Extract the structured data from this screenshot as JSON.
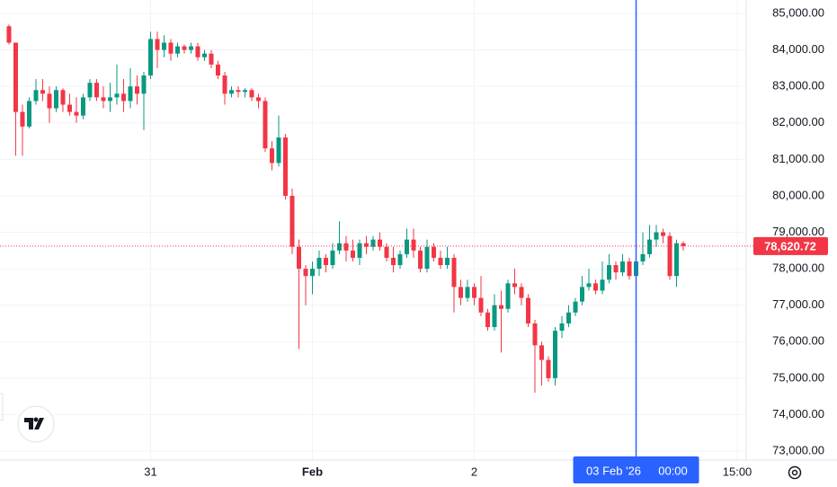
{
  "chart_data": {
    "type": "candlestick",
    "series": {
      "open": [
        84650,
        84200,
        82300,
        81900,
        82600,
        82900,
        82800,
        82400,
        82900,
        82500,
        82300,
        82200,
        82700,
        83100,
        82700,
        82600,
        82700,
        82800,
        82600,
        83000,
        82800,
        83300,
        84300,
        84000,
        84200,
        83900,
        84100,
        84000,
        84100,
        83800,
        83900,
        83600,
        83300,
        82800,
        82900,
        82850,
        82900,
        82700,
        82600,
        81300,
        80900,
        81600,
        80000,
        78600,
        78000,
        77800,
        78000,
        78300,
        78100,
        78500,
        78700,
        78500,
        78300,
        78700,
        78600,
        78800,
        78600,
        78300,
        78100,
        78400,
        78800,
        78500,
        78000,
        78600,
        78300,
        78100,
        78300,
        77500,
        77200,
        77500,
        77200,
        76800,
        76400,
        77000,
        76900,
        77600,
        77500,
        77200,
        76500,
        75900,
        75500,
        75000,
        76300,
        76500,
        76800,
        77100,
        77500,
        77600,
        77400,
        77700,
        78100,
        77900,
        78200,
        77800,
        78200,
        78400,
        78800,
        79000,
        78900,
        77800,
        78700
      ],
      "high": [
        84700,
        84200,
        82500,
        82700,
        83200,
        83200,
        83000,
        83000,
        82950,
        82800,
        82700,
        82800,
        83200,
        83200,
        83000,
        83100,
        83600,
        83200,
        83500,
        83300,
        83400,
        84500,
        84500,
        84400,
        84300,
        84200,
        84150,
        84200,
        84200,
        84000,
        84000,
        83700,
        83400,
        83000,
        83000,
        82950,
        82950,
        82800,
        82700,
        81500,
        82200,
        81700,
        80200,
        78800,
        78100,
        78200,
        78500,
        78400,
        78700,
        79300,
        78900,
        78800,
        78800,
        78900,
        78900,
        79000,
        78700,
        78600,
        78500,
        79100,
        79100,
        78600,
        78800,
        78700,
        78500,
        78600,
        78400,
        77700,
        77700,
        77600,
        77800,
        76900,
        77300,
        77400,
        77700,
        78000,
        77600,
        77300,
        76600,
        76000,
        75600,
        76400,
        76700,
        77000,
        77200,
        77800,
        78000,
        77700,
        78200,
        78400,
        78200,
        78400,
        78300,
        78500,
        79000,
        79200,
        79200,
        79100,
        79000,
        78800,
        78750
      ],
      "low": [
        84150,
        81100,
        81100,
        81850,
        82500,
        82600,
        82000,
        82300,
        82300,
        82200,
        82000,
        82100,
        82600,
        82600,
        82400,
        82300,
        82500,
        82300,
        82400,
        82500,
        81800,
        83200,
        83500,
        83800,
        83700,
        83800,
        83900,
        83900,
        83700,
        83700,
        83500,
        83200,
        82500,
        82700,
        82700,
        82700,
        82600,
        82400,
        81200,
        80700,
        80800,
        79900,
        78400,
        75800,
        77000,
        77300,
        77800,
        77900,
        78000,
        78400,
        78200,
        78200,
        78100,
        78400,
        78500,
        78500,
        78200,
        77900,
        78000,
        78300,
        78300,
        77900,
        77900,
        78200,
        78000,
        78000,
        76800,
        77000,
        77100,
        77000,
        76700,
        76300,
        76300,
        75700,
        76800,
        77300,
        77000,
        76400,
        74600,
        74800,
        74900,
        74800,
        76100,
        76400,
        76700,
        77000,
        77400,
        77300,
        77300,
        77600,
        77700,
        77800,
        77700,
        77700,
        78100,
        78300,
        78600,
        78700,
        77700,
        77500,
        78500
      ],
      "close": [
        84200,
        82300,
        81900,
        82600,
        82900,
        82800,
        82400,
        82900,
        82500,
        82300,
        82200,
        82700,
        83100,
        82700,
        82600,
        82700,
        82800,
        82600,
        83000,
        82800,
        83300,
        84300,
        84000,
        84200,
        83900,
        84100,
        84000,
        84100,
        83800,
        83900,
        83600,
        83300,
        82800,
        82900,
        82850,
        82900,
        82700,
        82600,
        81300,
        80900,
        81600,
        80000,
        78600,
        78000,
        77800,
        78000,
        78300,
        78100,
        78500,
        78700,
        78500,
        78300,
        78700,
        78600,
        78800,
        78600,
        78300,
        78100,
        78400,
        78800,
        78500,
        78000,
        78600,
        78300,
        78100,
        78300,
        77500,
        77200,
        77500,
        77200,
        76800,
        76400,
        77000,
        76900,
        77600,
        77500,
        77200,
        76500,
        75900,
        75500,
        75000,
        76300,
        76500,
        76800,
        77100,
        77500,
        77600,
        77400,
        77700,
        78100,
        77900,
        78200,
        77800,
        78200,
        78400,
        78800,
        79000,
        78900,
        77800,
        78700,
        78620.72
      ]
    },
    "colors": {
      "up": "#089981",
      "down": "#f23645"
    },
    "xlim": [
      -1.33,
      109.33
    ],
    "xticks": [
      {
        "value": 21,
        "label": "31"
      },
      {
        "value": 45,
        "label": "Feb"
      },
      {
        "value": 69,
        "label": "2"
      },
      {
        "value": 108,
        "label": "15:00"
      }
    ],
    "ylim": [
      72754,
      85370
    ],
    "yticks": [
      {
        "value": 73000,
        "label": "73,000.00"
      },
      {
        "value": 74000,
        "label": "74,000.00"
      },
      {
        "value": 75000,
        "label": "75,000.00"
      },
      {
        "value": 76000,
        "label": "76,000.00"
      },
      {
        "value": 77000,
        "label": "77,000.00"
      },
      {
        "value": 78000,
        "label": "78,000.00"
      },
      {
        "value": 79000,
        "label": "79,000.00"
      },
      {
        "value": 80000,
        "label": "80,000.00"
      },
      {
        "value": 81000,
        "label": "81,000.00"
      },
      {
        "value": 82000,
        "label": "82,000.00"
      },
      {
        "value": 83000,
        "label": "83,000.00"
      },
      {
        "value": 84000,
        "label": "84,000.00"
      },
      {
        "value": 85000,
        "label": "85,000.00"
      }
    ],
    "grid": true,
    "price_line": {
      "value": 78620.72,
      "label": "78,620.72",
      "color": "#f23645"
    },
    "crosshair": {
      "value": 93,
      "date": "03 Feb '26",
      "time": "00:00",
      "color": "#2962ff"
    }
  }
}
